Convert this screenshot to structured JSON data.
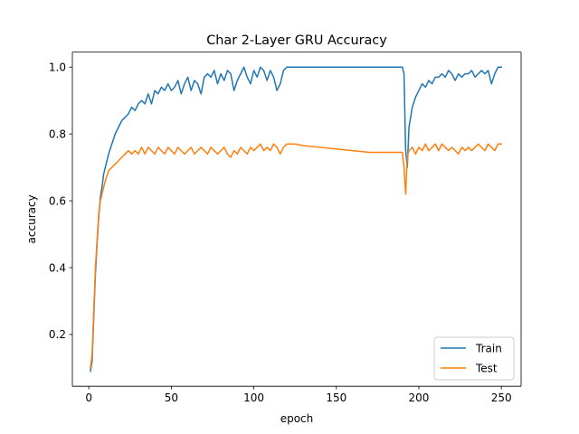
{
  "chart_data": {
    "type": "line",
    "title": "Char 2-Layer GRU Accuracy",
    "xlabel": "epoch",
    "ylabel": "accuracy",
    "xlim": [
      -9.95,
      261.95
    ],
    "ylim": [
      0.045,
      1.045
    ],
    "xticks": [
      0,
      50,
      100,
      150,
      200,
      250
    ],
    "yticks": [
      0.2,
      0.4,
      0.6,
      0.8,
      1.0
    ],
    "ytick_labels": [
      "0.2",
      "0.4",
      "0.6",
      "0.8",
      "1.0"
    ],
    "grid": false,
    "legend_position": "lower-right",
    "series": [
      {
        "name": "Train",
        "color": "#1f77b4",
        "points": [
          [
            1,
            0.09
          ],
          [
            2,
            0.12
          ],
          [
            3,
            0.25
          ],
          [
            4,
            0.38
          ],
          [
            5,
            0.47
          ],
          [
            6,
            0.55
          ],
          [
            7,
            0.61
          ],
          [
            8,
            0.64
          ],
          [
            9,
            0.68
          ],
          [
            10,
            0.7
          ],
          [
            12,
            0.74
          ],
          [
            14,
            0.77
          ],
          [
            16,
            0.8
          ],
          [
            18,
            0.82
          ],
          [
            20,
            0.84
          ],
          [
            22,
            0.85
          ],
          [
            24,
            0.86
          ],
          [
            26,
            0.88
          ],
          [
            28,
            0.87
          ],
          [
            30,
            0.89
          ],
          [
            32,
            0.9
          ],
          [
            34,
            0.89
          ],
          [
            36,
            0.92
          ],
          [
            38,
            0.89
          ],
          [
            40,
            0.93
          ],
          [
            42,
            0.92
          ],
          [
            44,
            0.94
          ],
          [
            46,
            0.93
          ],
          [
            48,
            0.95
          ],
          [
            50,
            0.93
          ],
          [
            52,
            0.94
          ],
          [
            54,
            0.96
          ],
          [
            56,
            0.92
          ],
          [
            58,
            0.95
          ],
          [
            60,
            0.97
          ],
          [
            62,
            0.93
          ],
          [
            64,
            0.96
          ],
          [
            66,
            0.95
          ],
          [
            68,
            0.92
          ],
          [
            70,
            0.97
          ],
          [
            72,
            0.98
          ],
          [
            74,
            0.97
          ],
          [
            76,
            0.99
          ],
          [
            78,
            0.95
          ],
          [
            80,
            0.98
          ],
          [
            82,
            0.96
          ],
          [
            84,
            0.99
          ],
          [
            86,
            0.98
          ],
          [
            88,
            0.93
          ],
          [
            90,
            0.96
          ],
          [
            92,
            0.98
          ],
          [
            94,
            1.0
          ],
          [
            96,
            0.97
          ],
          [
            98,
            0.95
          ],
          [
            100,
            0.99
          ],
          [
            102,
            0.97
          ],
          [
            104,
            1.0
          ],
          [
            106,
            0.99
          ],
          [
            108,
            0.96
          ],
          [
            110,
            0.99
          ],
          [
            112,
            0.97
          ],
          [
            114,
            0.93
          ],
          [
            116,
            0.95
          ],
          [
            118,
            0.99
          ],
          [
            120,
            1.0
          ],
          [
            130,
            1.0
          ],
          [
            140,
            1.0
          ],
          [
            150,
            1.0
          ],
          [
            160,
            1.0
          ],
          [
            170,
            1.0
          ],
          [
            180,
            1.0
          ],
          [
            190,
            1.0
          ],
          [
            191,
            0.98
          ],
          [
            192,
            0.75
          ],
          [
            193,
            0.7
          ],
          [
            194,
            0.82
          ],
          [
            196,
            0.88
          ],
          [
            198,
            0.91
          ],
          [
            200,
            0.93
          ],
          [
            202,
            0.95
          ],
          [
            204,
            0.94
          ],
          [
            206,
            0.96
          ],
          [
            208,
            0.95
          ],
          [
            210,
            0.97
          ],
          [
            212,
            0.97
          ],
          [
            214,
            0.98
          ],
          [
            216,
            0.97
          ],
          [
            218,
            0.99
          ],
          [
            220,
            0.98
          ],
          [
            222,
            0.96
          ],
          [
            224,
            0.98
          ],
          [
            226,
            0.97
          ],
          [
            228,
            0.98
          ],
          [
            230,
            0.98
          ],
          [
            232,
            0.99
          ],
          [
            234,
            0.97
          ],
          [
            236,
            0.98
          ],
          [
            238,
            0.99
          ],
          [
            240,
            0.98
          ],
          [
            242,
            0.99
          ],
          [
            244,
            0.95
          ],
          [
            246,
            0.98
          ],
          [
            248,
            1.0
          ],
          [
            250,
            1.0
          ]
        ]
      },
      {
        "name": "Test",
        "color": "#ff7f0e",
        "points": [
          [
            1,
            0.1
          ],
          [
            2,
            0.14
          ],
          [
            3,
            0.27
          ],
          [
            4,
            0.4
          ],
          [
            5,
            0.48
          ],
          [
            6,
            0.56
          ],
          [
            7,
            0.6
          ],
          [
            8,
            0.62
          ],
          [
            9,
            0.64
          ],
          [
            10,
            0.66
          ],
          [
            12,
            0.69
          ],
          [
            14,
            0.7
          ],
          [
            16,
            0.71
          ],
          [
            18,
            0.72
          ],
          [
            20,
            0.73
          ],
          [
            22,
            0.74
          ],
          [
            24,
            0.75
          ],
          [
            26,
            0.74
          ],
          [
            28,
            0.75
          ],
          [
            30,
            0.74
          ],
          [
            32,
            0.76
          ],
          [
            34,
            0.74
          ],
          [
            36,
            0.76
          ],
          [
            38,
            0.75
          ],
          [
            40,
            0.74
          ],
          [
            42,
            0.76
          ],
          [
            44,
            0.75
          ],
          [
            46,
            0.74
          ],
          [
            48,
            0.76
          ],
          [
            50,
            0.75
          ],
          [
            52,
            0.74
          ],
          [
            54,
            0.76
          ],
          [
            56,
            0.75
          ],
          [
            58,
            0.74
          ],
          [
            60,
            0.75
          ],
          [
            62,
            0.76
          ],
          [
            64,
            0.74
          ],
          [
            66,
            0.75
          ],
          [
            68,
            0.76
          ],
          [
            70,
            0.75
          ],
          [
            72,
            0.74
          ],
          [
            74,
            0.76
          ],
          [
            76,
            0.75
          ],
          [
            78,
            0.74
          ],
          [
            80,
            0.75
          ],
          [
            82,
            0.76
          ],
          [
            84,
            0.74
          ],
          [
            86,
            0.73
          ],
          [
            88,
            0.75
          ],
          [
            90,
            0.74
          ],
          [
            92,
            0.76
          ],
          [
            94,
            0.75
          ],
          [
            96,
            0.74
          ],
          [
            98,
            0.76
          ],
          [
            100,
            0.75
          ],
          [
            102,
            0.76
          ],
          [
            104,
            0.77
          ],
          [
            106,
            0.75
          ],
          [
            108,
            0.76
          ],
          [
            110,
            0.75
          ],
          [
            112,
            0.77
          ],
          [
            114,
            0.76
          ],
          [
            116,
            0.74
          ],
          [
            118,
            0.76
          ],
          [
            120,
            0.77
          ],
          [
            125,
            0.77
          ],
          [
            130,
            0.765
          ],
          [
            140,
            0.76
          ],
          [
            150,
            0.755
          ],
          [
            160,
            0.75
          ],
          [
            170,
            0.745
          ],
          [
            180,
            0.745
          ],
          [
            190,
            0.745
          ],
          [
            191,
            0.7
          ],
          [
            192,
            0.62
          ],
          [
            193,
            0.73
          ],
          [
            194,
            0.75
          ],
          [
            196,
            0.76
          ],
          [
            198,
            0.74
          ],
          [
            200,
            0.76
          ],
          [
            202,
            0.75
          ],
          [
            204,
            0.77
          ],
          [
            206,
            0.75
          ],
          [
            208,
            0.76
          ],
          [
            210,
            0.77
          ],
          [
            212,
            0.75
          ],
          [
            214,
            0.77
          ],
          [
            216,
            0.76
          ],
          [
            218,
            0.75
          ],
          [
            220,
            0.76
          ],
          [
            222,
            0.75
          ],
          [
            224,
            0.74
          ],
          [
            226,
            0.76
          ],
          [
            228,
            0.75
          ],
          [
            230,
            0.76
          ],
          [
            232,
            0.75
          ],
          [
            234,
            0.76
          ],
          [
            236,
            0.77
          ],
          [
            238,
            0.76
          ],
          [
            240,
            0.75
          ],
          [
            242,
            0.77
          ],
          [
            244,
            0.76
          ],
          [
            246,
            0.75
          ],
          [
            248,
            0.77
          ],
          [
            250,
            0.77
          ]
        ]
      }
    ]
  }
}
